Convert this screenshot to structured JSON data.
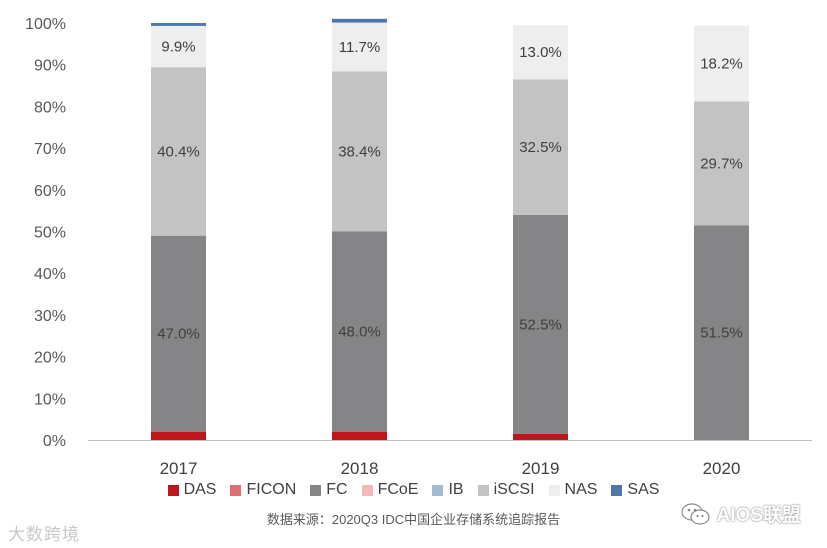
{
  "chart_data": {
    "type": "stacked-bar-100",
    "title": "",
    "xlabel": "",
    "ylabel": "",
    "categories": [
      "2017",
      "2018",
      "2019",
      "2020"
    ],
    "ylim": [
      0,
      100
    ],
    "yticks": [
      "0%",
      "10%",
      "20%",
      "30%",
      "40%",
      "50%",
      "60%",
      "70%",
      "80%",
      "90%",
      "100%"
    ],
    "legend_position": "bottom",
    "series": [
      {
        "name": "DAS",
        "color": "#c0151d",
        "values": [
          2.0,
          2.0,
          1.5,
          0.0
        ],
        "labels": [
          "",
          "",
          "",
          ""
        ]
      },
      {
        "name": "FICON",
        "color": "#e06f74",
        "values": [
          0,
          0,
          0,
          0
        ],
        "labels": [
          "",
          "",
          "",
          ""
        ]
      },
      {
        "name": "FC",
        "color": "#858587",
        "values": [
          47.0,
          48.0,
          52.5,
          51.5
        ],
        "labels": [
          "47.0%",
          "48.0%",
          "52.5%",
          "51.5%"
        ]
      },
      {
        "name": "FCoE",
        "color": "#f3b8bb",
        "values": [
          0,
          0,
          0,
          0
        ],
        "labels": [
          "",
          "",
          "",
          ""
        ]
      },
      {
        "name": "IB",
        "color": "#a3bcd6",
        "values": [
          0,
          0,
          0,
          0
        ],
        "labels": [
          "",
          "",
          "",
          ""
        ]
      },
      {
        "name": "iSCSI",
        "color": "#c3c3c3",
        "values": [
          40.4,
          38.4,
          32.5,
          29.7
        ],
        "labels": [
          "40.4%",
          "38.4%",
          "32.5%",
          "29.7%"
        ]
      },
      {
        "name": "NAS",
        "color": "#eeeeee",
        "values": [
          9.9,
          11.7,
          13.0,
          18.2
        ],
        "labels": [
          "9.9%",
          "11.7%",
          "13.0%",
          "18.2%"
        ]
      },
      {
        "name": "SAS",
        "color": "#4d77a8",
        "values": [
          0.7,
          0.9,
          0,
          0
        ],
        "labels": [
          "",
          "",
          "",
          ""
        ]
      }
    ]
  },
  "source": "数据来源：2020Q3 IDC中国企业存储系统追踪报告",
  "watermark_left": "大数跨境",
  "watermark_right": "AIOS联盟"
}
